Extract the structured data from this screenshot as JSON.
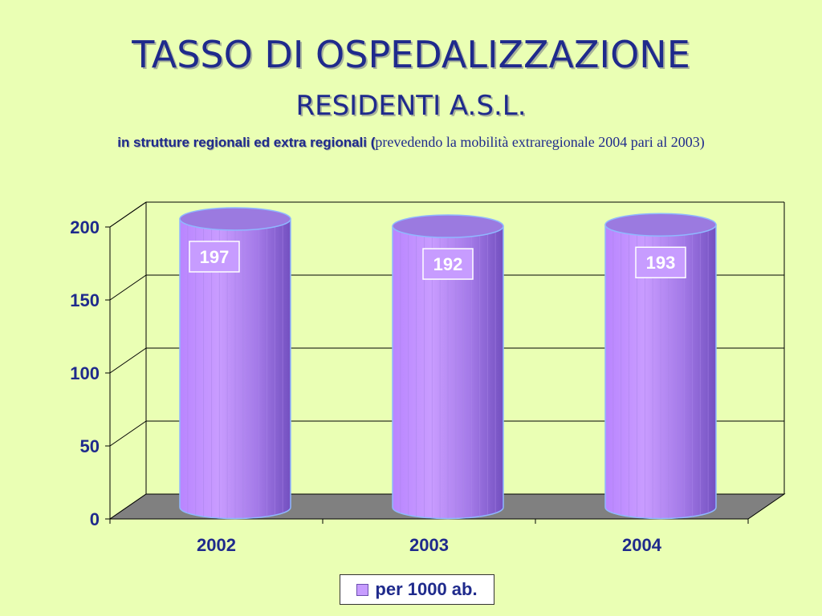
{
  "header": {
    "title": "TASSO DI OSPEDALIZZAZIONE",
    "subtitle": "RESIDENTI A.S.L.",
    "line_bold": "in strutture regionali ed extra regionali (",
    "line_normal": "prevedendo la mobilità extraregionale 2004 pari al 2003)"
  },
  "chart_data": {
    "type": "bar",
    "style": "3d-cylinder",
    "categories": [
      "2002",
      "2003",
      "2004"
    ],
    "series": [
      {
        "name": "per 1000 ab.",
        "values": [
          197,
          192,
          193
        ]
      }
    ],
    "data_labels": [
      "197",
      "192",
      "193"
    ],
    "ylim": [
      0,
      200
    ],
    "yticks": [
      "0",
      "50",
      "100",
      "150",
      "200"
    ],
    "grid": true,
    "legend": "bottom",
    "colors": {
      "bar_light": "#cfa6ff",
      "bar_dark": "#7a55c8",
      "bar_top": "#9b7ae0",
      "floor": "#808080",
      "axis_text": "#1f2a8c"
    }
  },
  "legend": {
    "label": "per 1000 ab."
  }
}
